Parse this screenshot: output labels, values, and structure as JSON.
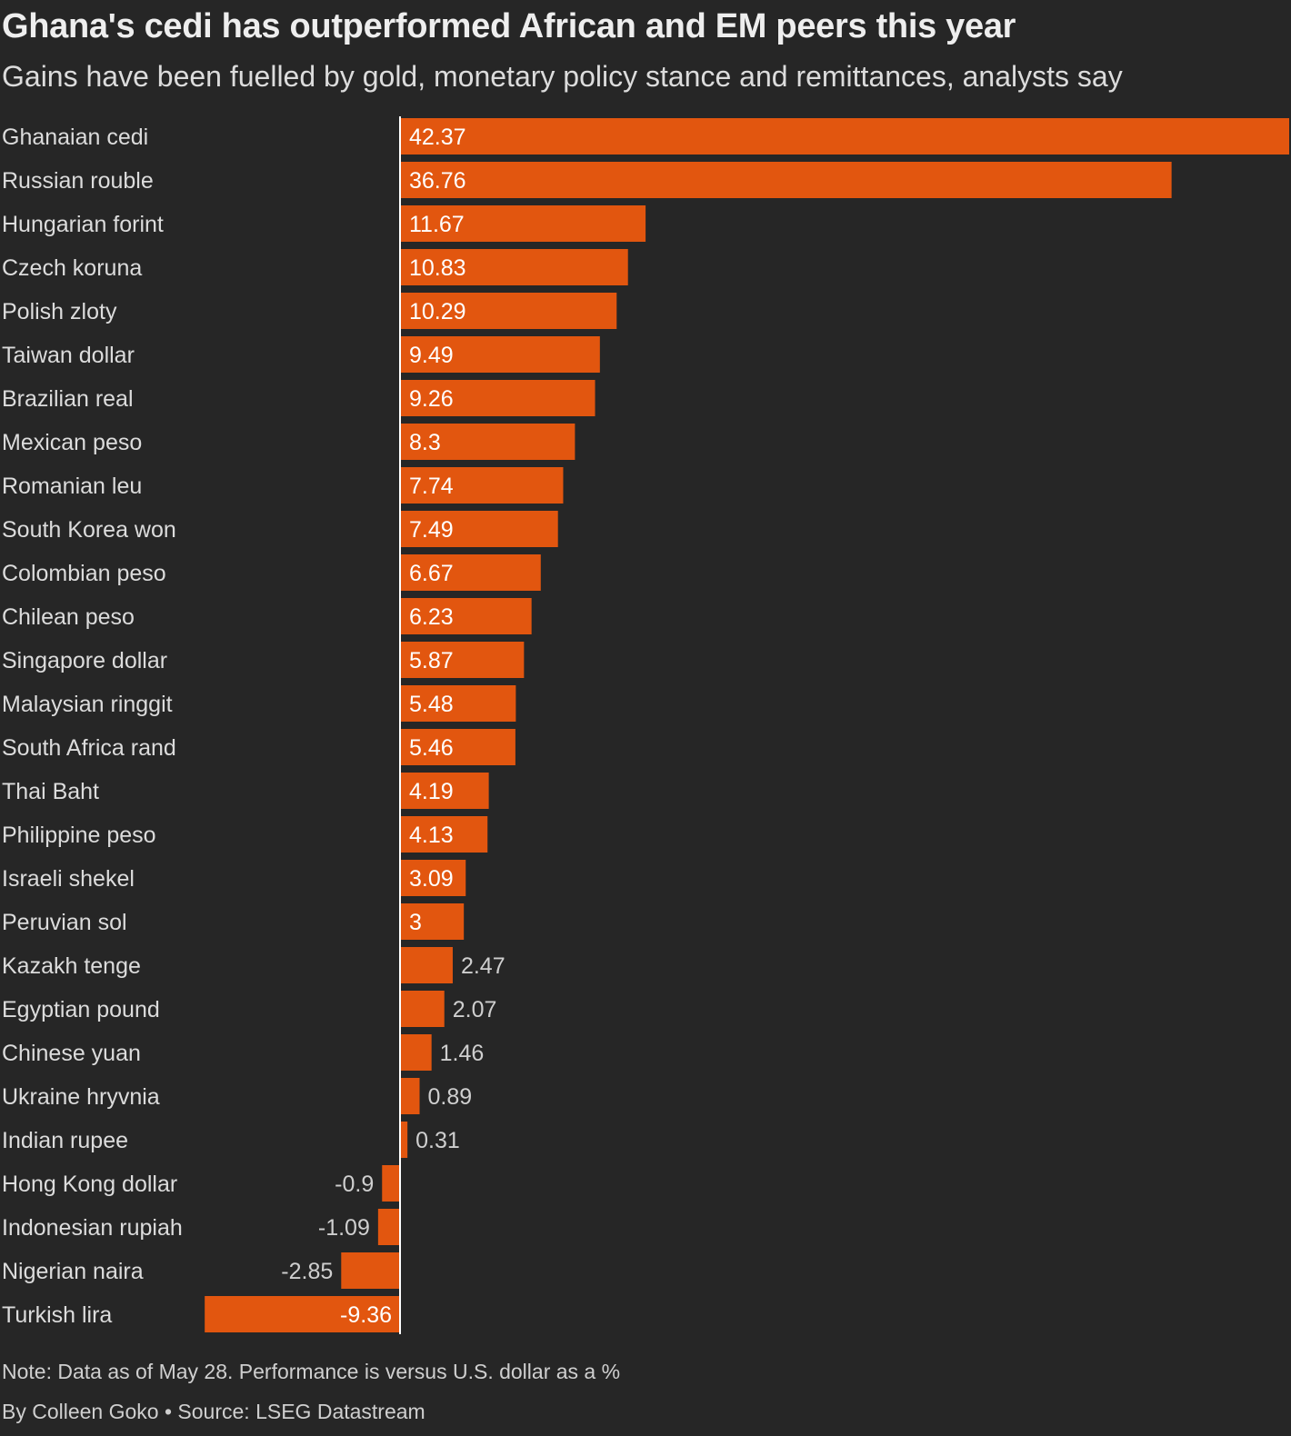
{
  "title": "Ghana's cedi has outperformed African and EM peers this year",
  "subtitle": "Gains have been fuelled by gold, monetary policy stance and remittances, analysts say",
  "note": "Note: Data as of May 28. Performance is versus U.S. dollar as a %",
  "credit": "By Colleen Goko • Source: LSEG Datastream",
  "colors": {
    "background": "#262626",
    "bar": "#e2560f",
    "axis": "#ffffff",
    "label_inside": "#ffffff",
    "label_outside": "#cfcfcf"
  },
  "chart_data": {
    "type": "bar",
    "orientation": "horizontal",
    "title": "Ghana's cedi has outperformed African and EM peers this year",
    "subtitle": "Gains have been fuelled by gold, monetary policy stance and remittances, analysts say",
    "xlabel": "",
    "ylabel": "",
    "unit": "%",
    "xlim": [
      -9.36,
      42.37
    ],
    "grid": false,
    "categories": [
      "Ghanaian cedi",
      "Russian rouble",
      "Hungarian forint",
      "Czech koruna",
      "Polish zloty",
      "Taiwan dollar",
      "Brazilian real",
      "Mexican peso",
      "Romanian leu",
      "South Korea won",
      "Colombian peso",
      "Chilean peso",
      "Singapore dollar",
      "Malaysian ringgit",
      "South Africa rand",
      "Thai Baht",
      "Philippine peso",
      "Israeli shekel",
      "Peruvian sol",
      "Kazakh tenge",
      "Egyptian pound",
      "Chinese yuan",
      "Ukraine hryvnia",
      "Indian rupee",
      "Hong Kong dollar",
      "Indonesian rupiah",
      "Nigerian naira",
      "Turkish lira"
    ],
    "values": [
      42.37,
      36.76,
      11.67,
      10.83,
      10.29,
      9.49,
      9.26,
      8.3,
      7.74,
      7.49,
      6.67,
      6.23,
      5.87,
      5.48,
      5.46,
      4.19,
      4.13,
      3.09,
      3,
      2.47,
      2.07,
      1.46,
      0.89,
      0.31,
      -0.9,
      -1.09,
      -2.85,
      -9.36
    ],
    "value_labels": [
      "42.37",
      "36.76",
      "11.67",
      "10.83",
      "10.29",
      "9.49",
      "9.26",
      "8.3",
      "7.74",
      "7.49",
      "6.67",
      "6.23",
      "5.87",
      "5.48",
      "5.46",
      "4.19",
      "4.13",
      "3.09",
      "3",
      "2.47",
      "2.07",
      "1.46",
      "0.89",
      "0.31",
      "-0.9",
      "-1.09",
      "-2.85",
      "-9.36"
    ]
  }
}
